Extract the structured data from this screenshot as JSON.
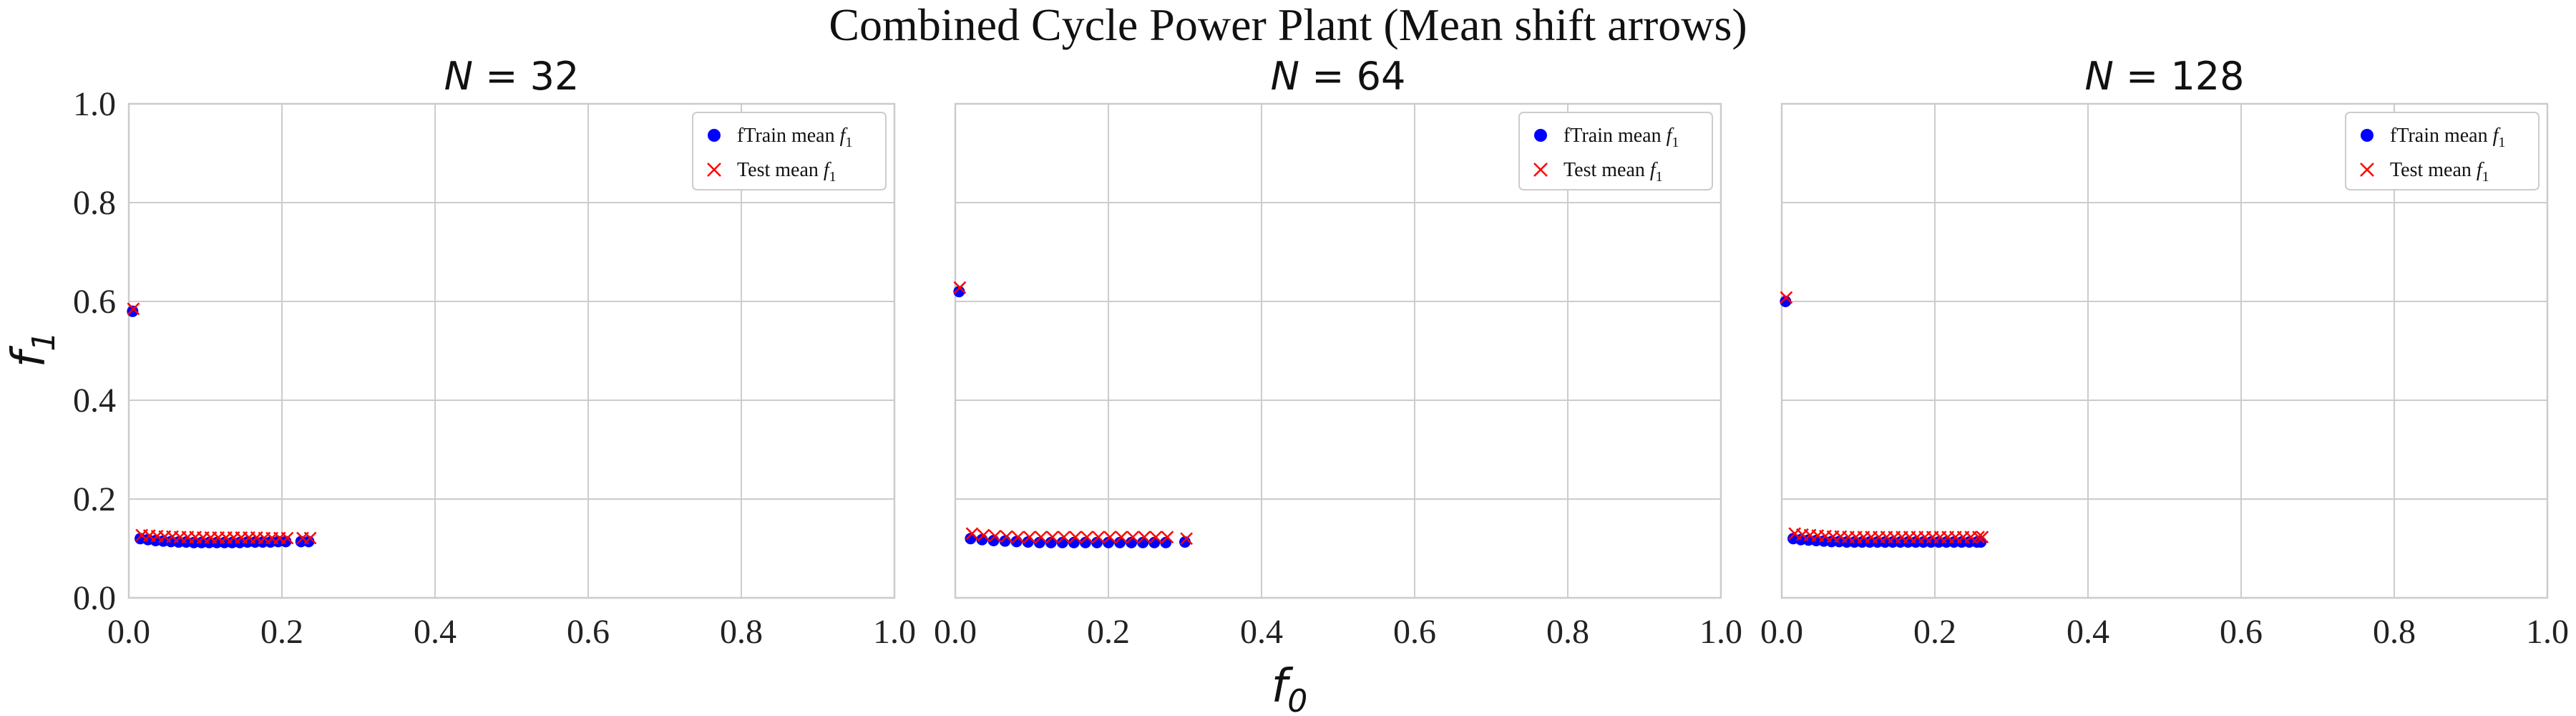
{
  "figure_title": "Combined Cycle Power Plant (Mean shift arrows)",
  "xlabel": "f",
  "xlabel_sub": "0",
  "ylabel": "f",
  "ylabel_sub": "1",
  "colors": {
    "train": "#0000ff",
    "test": "#ff0000",
    "grid": "#cccccc"
  },
  "chart_data": [
    {
      "type": "scatter",
      "title": "N = 32",
      "xlim": [
        0,
        1
      ],
      "ylim": [
        0,
        1
      ],
      "xticks": [
        "0.0",
        "0.2",
        "0.4",
        "0.6",
        "0.8",
        "1.0"
      ],
      "yticks": [
        "0.0",
        "0.2",
        "0.4",
        "0.6",
        "0.8",
        "1.0"
      ],
      "grid": true,
      "legend_position": "top-right",
      "legend": [
        "fTrain mean f1",
        "Test mean f1"
      ],
      "series": [
        {
          "name": "fTrain mean f1",
          "marker": "circle",
          "x": [
            0.005,
            0.015,
            0.025,
            0.035,
            0.045,
            0.055,
            0.065,
            0.075,
            0.085,
            0.095,
            0.105,
            0.115,
            0.125,
            0.135,
            0.145,
            0.155,
            0.165,
            0.175,
            0.185,
            0.195,
            0.205,
            0.225,
            0.235
          ],
          "y": [
            0.58,
            0.12,
            0.118,
            0.116,
            0.115,
            0.114,
            0.113,
            0.113,
            0.112,
            0.112,
            0.112,
            0.112,
            0.112,
            0.112,
            0.112,
            0.113,
            0.113,
            0.113,
            0.113,
            0.114,
            0.114,
            0.114,
            0.114
          ]
        },
        {
          "name": "Test mean f1",
          "marker": "x",
          "x": [
            0.006,
            0.017,
            0.027,
            0.037,
            0.047,
            0.057,
            0.067,
            0.077,
            0.087,
            0.097,
            0.107,
            0.117,
            0.127,
            0.137,
            0.147,
            0.157,
            0.167,
            0.177,
            0.187,
            0.197,
            0.207,
            0.227,
            0.237
          ],
          "y": [
            0.585,
            0.127,
            0.126,
            0.125,
            0.124,
            0.124,
            0.123,
            0.123,
            0.123,
            0.122,
            0.122,
            0.122,
            0.122,
            0.122,
            0.122,
            0.122,
            0.122,
            0.121,
            0.121,
            0.121,
            0.121,
            0.121,
            0.121
          ]
        }
      ]
    },
    {
      "type": "scatter",
      "title": "N = 64",
      "xlim": [
        0,
        1
      ],
      "ylim": [
        0,
        1
      ],
      "xticks": [
        "0.0",
        "0.2",
        "0.4",
        "0.6",
        "0.8",
        "1.0"
      ],
      "yticks": [
        "0.0",
        "0.2",
        "0.4",
        "0.6",
        "0.8",
        "1.0"
      ],
      "grid": true,
      "legend_position": "top-right",
      "legend": [
        "fTrain mean f1",
        "Test mean f1"
      ],
      "series": [
        {
          "name": "fTrain mean f1",
          "marker": "circle",
          "x": [
            0.005,
            0.02,
            0.035,
            0.05,
            0.065,
            0.08,
            0.095,
            0.11,
            0.125,
            0.14,
            0.155,
            0.17,
            0.185,
            0.2,
            0.215,
            0.23,
            0.245,
            0.26,
            0.275,
            0.3
          ],
          "y": [
            0.62,
            0.12,
            0.118,
            0.116,
            0.115,
            0.114,
            0.113,
            0.112,
            0.112,
            0.112,
            0.112,
            0.112,
            0.112,
            0.112,
            0.112,
            0.112,
            0.112,
            0.112,
            0.112,
            0.113
          ]
        },
        {
          "name": "Test mean f1",
          "marker": "x",
          "x": [
            0.006,
            0.022,
            0.037,
            0.052,
            0.067,
            0.082,
            0.097,
            0.112,
            0.127,
            0.142,
            0.157,
            0.172,
            0.187,
            0.202,
            0.217,
            0.232,
            0.247,
            0.262,
            0.277,
            0.302
          ],
          "y": [
            0.628,
            0.13,
            0.127,
            0.125,
            0.124,
            0.123,
            0.123,
            0.123,
            0.123,
            0.123,
            0.123,
            0.123,
            0.123,
            0.123,
            0.123,
            0.123,
            0.123,
            0.123,
            0.123,
            0.12
          ]
        }
      ]
    },
    {
      "type": "scatter",
      "title": "N = 128",
      "xlim": [
        0,
        1
      ],
      "ylim": [
        0,
        1
      ],
      "xticks": [
        "0.0",
        "0.2",
        "0.4",
        "0.6",
        "0.8",
        "1.0"
      ],
      "yticks": [
        "0.0",
        "0.2",
        "0.4",
        "0.6",
        "0.8",
        "1.0"
      ],
      "grid": true,
      "legend_position": "top-right",
      "legend": [
        "fTrain mean f1",
        "Test mean f1"
      ],
      "series": [
        {
          "name": "fTrain mean f1",
          "marker": "circle",
          "x": [
            0.005,
            0.015,
            0.025,
            0.035,
            0.045,
            0.055,
            0.065,
            0.075,
            0.085,
            0.095,
            0.105,
            0.115,
            0.125,
            0.135,
            0.145,
            0.155,
            0.165,
            0.175,
            0.185,
            0.195,
            0.205,
            0.215,
            0.225,
            0.235,
            0.245,
            0.255,
            0.26
          ],
          "y": [
            0.6,
            0.12,
            0.118,
            0.117,
            0.116,
            0.115,
            0.114,
            0.114,
            0.113,
            0.113,
            0.113,
            0.113,
            0.113,
            0.113,
            0.113,
            0.113,
            0.113,
            0.113,
            0.113,
            0.113,
            0.113,
            0.113,
            0.113,
            0.113,
            0.113,
            0.113,
            0.113
          ]
        },
        {
          "name": "Test mean f1",
          "marker": "x",
          "x": [
            0.006,
            0.017,
            0.027,
            0.037,
            0.047,
            0.057,
            0.067,
            0.077,
            0.087,
            0.097,
            0.107,
            0.117,
            0.127,
            0.137,
            0.147,
            0.157,
            0.167,
            0.177,
            0.187,
            0.197,
            0.207,
            0.217,
            0.227,
            0.237,
            0.247,
            0.257,
            0.262
          ],
          "y": [
            0.608,
            0.13,
            0.128,
            0.127,
            0.126,
            0.125,
            0.124,
            0.124,
            0.123,
            0.123,
            0.123,
            0.123,
            0.123,
            0.123,
            0.123,
            0.123,
            0.123,
            0.123,
            0.123,
            0.123,
            0.123,
            0.123,
            0.123,
            0.123,
            0.123,
            0.123,
            0.123
          ]
        }
      ]
    }
  ]
}
